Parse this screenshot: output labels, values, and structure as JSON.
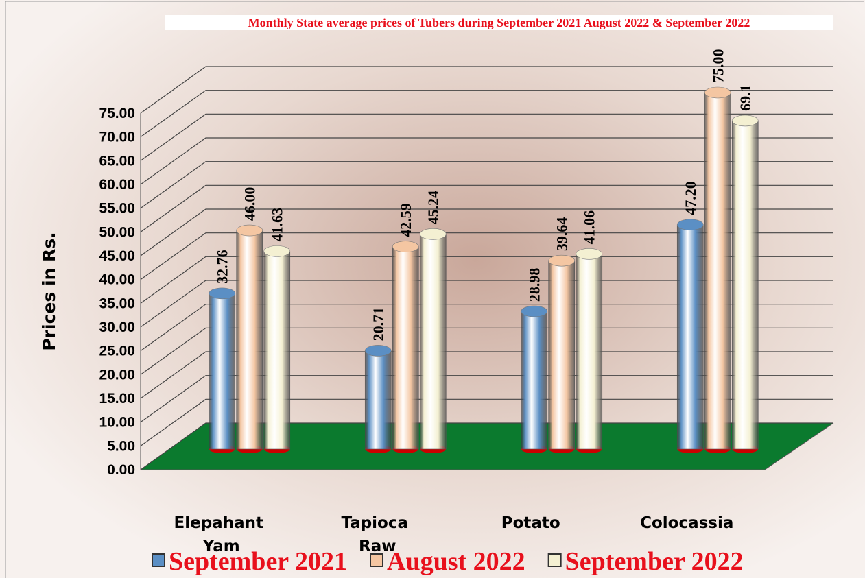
{
  "chart_data": {
    "type": "bar3d",
    "title": "Monthly State average  prices of Tubers during  September 2021  August 2022  &  September 2022",
    "y_label": "Prices in Rs.",
    "categories": [
      "Elepahant Yam",
      "Tapioca Raw",
      "Potato",
      "Colocassia"
    ],
    "series": [
      {
        "name": "September 2021",
        "color": "#5b8fc4",
        "values": [
          32.76,
          20.71,
          28.98,
          47.2
        ],
        "value_labels": [
          "32.76",
          "20.71",
          "28.98",
          "47.20"
        ]
      },
      {
        "name": "August 2022",
        "color": "#f4c6a2",
        "values": [
          46.0,
          42.59,
          39.64,
          75.0
        ],
        "value_labels": [
          "46.00",
          "42.59",
          "39.64",
          "75.00"
        ]
      },
      {
        "name": "September 2022",
        "color": "#f4f0d2",
        "values": [
          41.63,
          45.24,
          41.06,
          69.1
        ],
        "value_labels": [
          "41.63",
          "45.24",
          "41.06",
          "69.1"
        ]
      }
    ],
    "ylim": [
      0,
      75
    ],
    "yticks": [
      {
        "value": 0,
        "label": "0.00"
      },
      {
        "value": 5,
        "label": "5.00"
      },
      {
        "value": 10,
        "label": "10.00"
      },
      {
        "value": 15,
        "label": "15.00"
      },
      {
        "value": 20,
        "label": "20.00"
      },
      {
        "value": 25,
        "label": "25.00"
      },
      {
        "value": 30,
        "label": "30.00"
      },
      {
        "value": 35,
        "label": "35.00"
      },
      {
        "value": 40,
        "label": "40.00"
      },
      {
        "value": 45,
        "label": "45.00"
      },
      {
        "value": 50,
        "label": "50.00"
      },
      {
        "value": 55,
        "label": "55.00"
      },
      {
        "value": 60,
        "label": "60.00"
      },
      {
        "value": 65,
        "label": "65.00"
      },
      {
        "value": 70,
        "label": "70.00"
      },
      {
        "value": 75,
        "label": "75.00"
      }
    ],
    "grid": true,
    "floor_color": "#0b7a2e"
  }
}
